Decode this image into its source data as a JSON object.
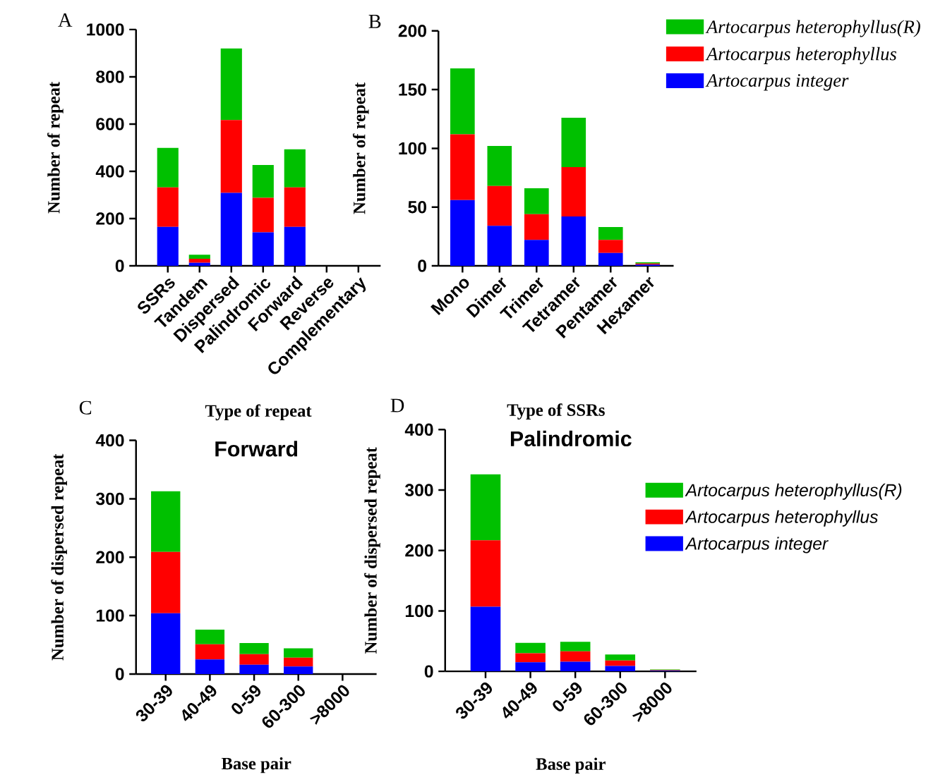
{
  "chart_data": [
    {
      "type": "bar",
      "stacked": true,
      "xlabel": "Type of repeat",
      "ylabel": "Number of repeat",
      "annotations": [
        "A"
      ],
      "categories": [
        "SSRs",
        "Tandem",
        "Dispersed",
        "Palindromic",
        "Forward",
        "Reverse",
        "Complementary"
      ],
      "ylim": [
        0,
        1000
      ],
      "yticks": [
        0,
        200,
        400,
        600,
        800,
        1000
      ],
      "legend": false,
      "series": [
        {
          "color": "#0000ff",
          "values": [
            165,
            13,
            309,
            142,
            165,
            0,
            0
          ]
        },
        {
          "color": "#ff0000",
          "values": [
            167,
            17,
            308,
            146,
            167,
            0,
            0
          ]
        },
        {
          "color": "#00c000",
          "values": [
            167,
            17,
            303,
            139,
            161,
            0,
            0
          ]
        }
      ]
    },
    {
      "type": "bar",
      "stacked": true,
      "xlabel": "Type of SSRs",
      "ylabel": "Number of repeat",
      "annotations": [
        "B"
      ],
      "categories": [
        "Mono",
        "Dimer",
        "Trimer",
        "Tetramer",
        "Pentamer",
        "Hexamer"
      ],
      "ylim": [
        0,
        200
      ],
      "yticks": [
        0,
        50,
        100,
        150,
        200
      ],
      "legend": "top right",
      "series": [
        {
          "name": "Artocarpus integer",
          "color": "#0000ff",
          "values": [
            56,
            34,
            22,
            42,
            11,
            1
          ]
        },
        {
          "name": "Artocarpus heterophyllus",
          "color": "#ff0000",
          "values": [
            56,
            34,
            22,
            42,
            11,
            1
          ]
        },
        {
          "name": "Artocarpus heterophyllus(R)",
          "color": "#00c000",
          "values": [
            56,
            34,
            22,
            42,
            11,
            1
          ]
        }
      ]
    },
    {
      "type": "bar",
      "stacked": true,
      "title": "Forward",
      "xlabel": "Base pair",
      "ylabel": "Number of dispersed repeat",
      "annotations": [
        "C"
      ],
      "categories": [
        "30-39",
        "40-49",
        "0-59",
        "60-300",
        ">8000"
      ],
      "ylim": [
        0,
        400
      ],
      "yticks": [
        0,
        100,
        200,
        300,
        400
      ],
      "legend": false,
      "series": [
        {
          "color": "#0000ff",
          "values": [
            104,
            25,
            16,
            13,
            0
          ]
        },
        {
          "color": "#ff0000",
          "values": [
            105,
            26,
            18,
            15,
            0
          ]
        },
        {
          "color": "#00c000",
          "values": [
            104,
            25,
            19,
            16,
            0
          ]
        }
      ]
    },
    {
      "type": "bar",
      "stacked": true,
      "title": "Palindromic",
      "xlabel": "Base pair",
      "ylabel": "Number of dispersed repeat",
      "annotations": [
        "D"
      ],
      "categories": [
        "30-39",
        "40-49",
        "0-59",
        "60-300",
        ">8000"
      ],
      "ylim": [
        0,
        400
      ],
      "yticks": [
        0,
        100,
        200,
        300,
        400
      ],
      "legend": "right",
      "series": [
        {
          "name": "Artocarpus integer",
          "color": "#0000ff",
          "values": [
            107,
            15,
            16,
            9,
            1
          ]
        },
        {
          "name": "Artocarpus heterophyllus",
          "color": "#ff0000",
          "values": [
            110,
            15,
            17,
            9,
            1
          ]
        },
        {
          "name": "Artocarpus heterophyllus(R)",
          "color": "#00c000",
          "values": [
            109,
            17,
            16,
            10,
            1
          ]
        }
      ]
    }
  ]
}
